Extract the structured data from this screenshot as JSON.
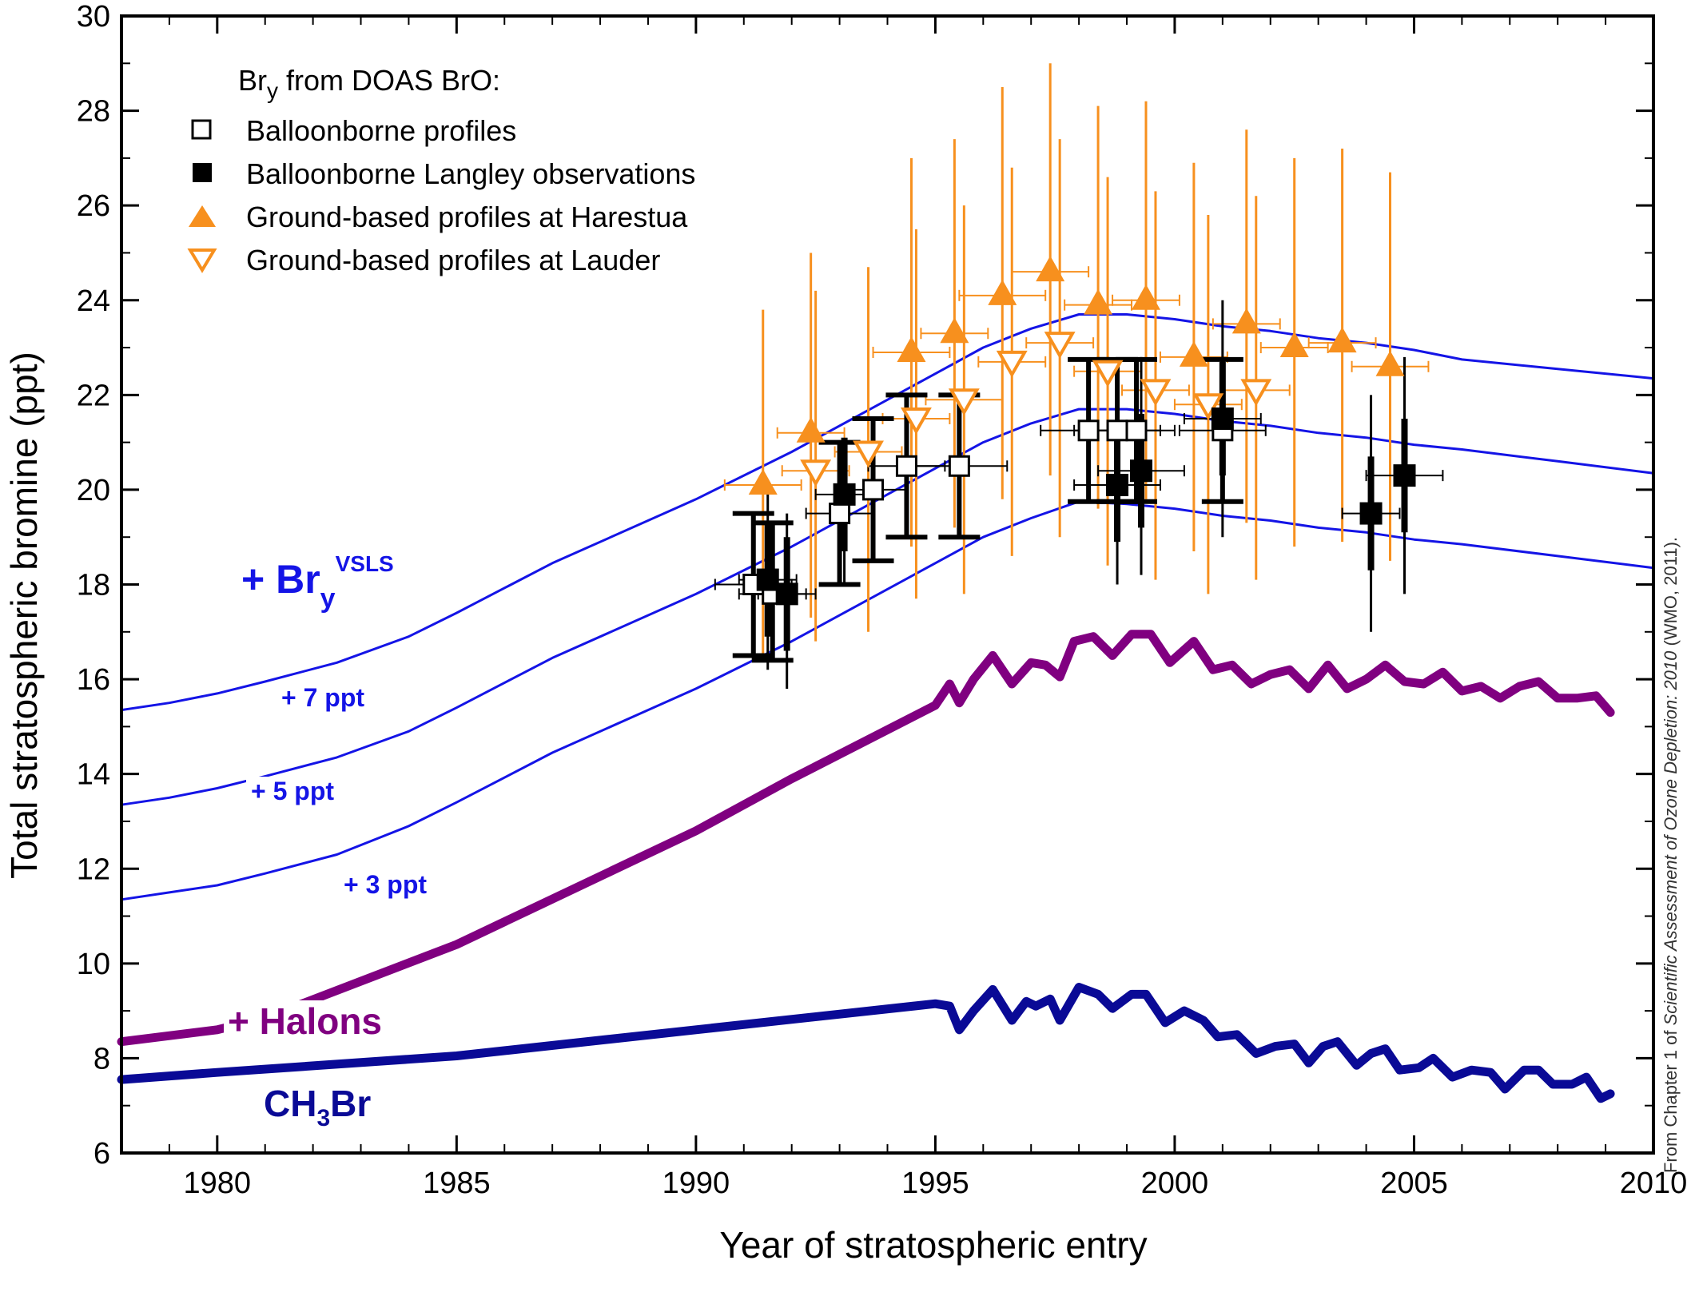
{
  "chart_data": {
    "type": "scatter",
    "xlabel": "Year of stratospheric entry",
    "ylabel": "Total stratospheric bromine (ppt)",
    "xlim": [
      1978,
      2010
    ],
    "ylim": [
      6,
      30
    ],
    "xticks": [
      1980,
      1985,
      1990,
      1995,
      2000,
      2005,
      2010
    ],
    "yticks": [
      6,
      8,
      10,
      12,
      14,
      16,
      18,
      20,
      22,
      24,
      26,
      28,
      30
    ],
    "legend": {
      "title_main": "Br",
      "title_sub": "y",
      "title_rest": " from DOAS BrO:",
      "placement": "top-left",
      "entries": [
        {
          "label": "Balloonborne profiles",
          "marker": "open-square"
        },
        {
          "label": "Balloonborne Langley observations",
          "marker": "filled-square"
        },
        {
          "label": "Ground-based profiles at Harestua",
          "marker": "filled-triangle-up"
        },
        {
          "label": "Ground-based profiles at Lauder",
          "marker": "open-triangle-down"
        }
      ]
    },
    "curve_labels": {
      "bry_main": "+ Br",
      "bry_sub": "y",
      "bry_sup": "VSLS",
      "plus7": "+ 7 ppt",
      "plus5": "+ 5 ppt",
      "plus3": "+ 3 ppt",
      "halons": "+ Halons",
      "ch3br_a": "CH",
      "ch3br_sub": "3",
      "ch3br_b": "Br"
    },
    "colors": {
      "vsls_lines": "#1414e6",
      "halons": "#800080",
      "ch3br": "#0a0a96",
      "orange": "#f7901e",
      "black": "#000000"
    },
    "series": {
      "ch3br": [
        [
          1978,
          7.55
        ],
        [
          1980,
          7.7
        ],
        [
          1985,
          8.05
        ],
        [
          1990,
          8.6
        ],
        [
          1995,
          9.15
        ],
        [
          1995.3,
          9.1
        ],
        [
          1995.5,
          8.6
        ],
        [
          1995.8,
          9.0
        ],
        [
          1996.2,
          9.45
        ],
        [
          1996.6,
          8.8
        ],
        [
          1996.9,
          9.2
        ],
        [
          1997.1,
          9.1
        ],
        [
          1997.4,
          9.25
        ],
        [
          1997.6,
          8.8
        ],
        [
          1998,
          9.5
        ],
        [
          1998.4,
          9.35
        ],
        [
          1998.7,
          9.05
        ],
        [
          1999.1,
          9.35
        ],
        [
          1999.4,
          9.35
        ],
        [
          1999.8,
          8.75
        ],
        [
          2000.2,
          9.0
        ],
        [
          2000.6,
          8.8
        ],
        [
          2000.9,
          8.45
        ],
        [
          2001.3,
          8.5
        ],
        [
          2001.7,
          8.1
        ],
        [
          2002.1,
          8.25
        ],
        [
          2002.5,
          8.3
        ],
        [
          2002.8,
          7.9
        ],
        [
          2003.1,
          8.25
        ],
        [
          2003.4,
          8.35
        ],
        [
          2003.8,
          7.85
        ],
        [
          2004.1,
          8.1
        ],
        [
          2004.4,
          8.2
        ],
        [
          2004.7,
          7.75
        ],
        [
          2005.1,
          7.8
        ],
        [
          2005.4,
          8.0
        ],
        [
          2005.8,
          7.6
        ],
        [
          2006.2,
          7.75
        ],
        [
          2006.6,
          7.7
        ],
        [
          2006.9,
          7.35
        ],
        [
          2007.3,
          7.75
        ],
        [
          2007.6,
          7.75
        ],
        [
          2007.9,
          7.45
        ],
        [
          2008.3,
          7.45
        ],
        [
          2008.6,
          7.6
        ],
        [
          2008.9,
          7.15
        ],
        [
          2009.1,
          7.25
        ]
      ],
      "halons": [
        [
          1978,
          8.35
        ],
        [
          1980,
          8.6
        ],
        [
          1981,
          8.85
        ],
        [
          1985,
          10.4
        ],
        [
          1990,
          12.8
        ],
        [
          1992,
          13.9
        ],
        [
          1995,
          15.45
        ],
        [
          1995.3,
          15.9
        ],
        [
          1995.5,
          15.5
        ],
        [
          1995.8,
          16.0
        ],
        [
          1996.2,
          16.5
        ],
        [
          1996.6,
          15.9
        ],
        [
          1997.0,
          16.35
        ],
        [
          1997.3,
          16.3
        ],
        [
          1997.6,
          16.05
        ],
        [
          1997.9,
          16.8
        ],
        [
          1998.3,
          16.9
        ],
        [
          1998.7,
          16.5
        ],
        [
          1999.1,
          16.95
        ],
        [
          1999.5,
          16.95
        ],
        [
          1999.9,
          16.35
        ],
        [
          2000.4,
          16.8
        ],
        [
          2000.8,
          16.2
        ],
        [
          2001.2,
          16.3
        ],
        [
          2001.6,
          15.9
        ],
        [
          2002.0,
          16.1
        ],
        [
          2002.4,
          16.2
        ],
        [
          2002.8,
          15.8
        ],
        [
          2003.2,
          16.3
        ],
        [
          2003.6,
          15.8
        ],
        [
          2004.0,
          16.0
        ],
        [
          2004.4,
          16.3
        ],
        [
          2004.8,
          15.95
        ],
        [
          2005.2,
          15.9
        ],
        [
          2005.6,
          16.15
        ],
        [
          2006.0,
          15.75
        ],
        [
          2006.4,
          15.85
        ],
        [
          2006.8,
          15.6
        ],
        [
          2007.2,
          15.85
        ],
        [
          2007.6,
          15.95
        ],
        [
          2008.0,
          15.6
        ],
        [
          2008.4,
          15.6
        ],
        [
          2008.8,
          15.65
        ],
        [
          2009.1,
          15.3
        ]
      ],
      "plus3": [
        [
          1978,
          11.35
        ],
        [
          1979,
          11.5
        ],
        [
          1980,
          11.65
        ],
        [
          1981,
          11.9
        ],
        [
          1982.5,
          12.3
        ],
        [
          1984,
          12.9
        ],
        [
          1985,
          13.4
        ],
        [
          1987,
          14.45
        ],
        [
          1990,
          15.8
        ],
        [
          1992,
          16.8
        ],
        [
          1995,
          18.45
        ],
        [
          1996,
          19.0
        ],
        [
          1997,
          19.4
        ],
        [
          1998,
          19.75
        ],
        [
          1999,
          19.7
        ],
        [
          2000,
          19.6
        ],
        [
          2001,
          19.45
        ],
        [
          2002,
          19.35
        ],
        [
          2003,
          19.2
        ],
        [
          2004,
          19.1
        ],
        [
          2005,
          18.95
        ],
        [
          2006,
          18.85
        ],
        [
          2008,
          18.6
        ],
        [
          2010,
          18.35
        ]
      ],
      "plus5": [
        [
          1978,
          13.35
        ],
        [
          1979,
          13.5
        ],
        [
          1980,
          13.7
        ],
        [
          1981,
          13.95
        ],
        [
          1982.5,
          14.35
        ],
        [
          1984,
          14.9
        ],
        [
          1985,
          15.4
        ],
        [
          1987,
          16.45
        ],
        [
          1990,
          17.8
        ],
        [
          1992,
          18.8
        ],
        [
          1995,
          20.45
        ],
        [
          1996,
          21.0
        ],
        [
          1997,
          21.4
        ],
        [
          1998,
          21.7
        ],
        [
          1999,
          21.7
        ],
        [
          2000,
          21.6
        ],
        [
          2001,
          21.45
        ],
        [
          2002,
          21.35
        ],
        [
          2003,
          21.2
        ],
        [
          2004,
          21.1
        ],
        [
          2005,
          20.95
        ],
        [
          2006,
          20.85
        ],
        [
          2008,
          20.6
        ],
        [
          2010,
          20.35
        ]
      ],
      "plus7": [
        [
          1978,
          15.35
        ],
        [
          1979,
          15.5
        ],
        [
          1980,
          15.7
        ],
        [
          1981,
          15.95
        ],
        [
          1982.5,
          16.35
        ],
        [
          1984,
          16.9
        ],
        [
          1985,
          17.4
        ],
        [
          1987,
          18.45
        ],
        [
          1990,
          19.8
        ],
        [
          1992,
          20.8
        ],
        [
          1995,
          22.45
        ],
        [
          1996,
          23.0
        ],
        [
          1997,
          23.4
        ],
        [
          1998,
          23.7
        ],
        [
          1999,
          23.7
        ],
        [
          2000,
          23.6
        ],
        [
          2001,
          23.45
        ],
        [
          2002,
          23.35
        ],
        [
          2003,
          23.2
        ],
        [
          2004,
          23.1
        ],
        [
          2005,
          22.95
        ],
        [
          2006,
          22.75
        ],
        [
          2008,
          22.55
        ],
        [
          2010,
          22.35
        ]
      ],
      "harestua": [
        {
          "x": 1991.4,
          "y": 20.1,
          "xerr": 0.8,
          "ylo": 16.4,
          "yhi": 23.8
        },
        {
          "x": 1992.4,
          "y": 21.2,
          "xerr": 0.7,
          "ylo": 17.3,
          "yhi": 25.0
        },
        {
          "x": 1994.5,
          "y": 22.9,
          "xerr": 0.8,
          "ylo": 18.8,
          "yhi": 27.0
        },
        {
          "x": 1995.4,
          "y": 23.3,
          "xerr": 0.7,
          "ylo": 19.2,
          "yhi": 27.4
        },
        {
          "x": 1996.4,
          "y": 24.1,
          "xerr": 0.9,
          "ylo": 19.8,
          "yhi": 28.5
        },
        {
          "x": 1997.4,
          "y": 24.6,
          "xerr": 0.8,
          "ylo": 20.3,
          "yhi": 29.0
        },
        {
          "x": 1998.4,
          "y": 23.9,
          "xerr": 0.7,
          "ylo": 19.6,
          "yhi": 28.1
        },
        {
          "x": 1999.4,
          "y": 24.0,
          "xerr": 0.7,
          "ylo": 19.8,
          "yhi": 28.2
        },
        {
          "x": 2000.4,
          "y": 22.8,
          "xerr": 0.7,
          "ylo": 18.7,
          "yhi": 26.9
        },
        {
          "x": 2001.5,
          "y": 23.5,
          "xerr": 0.7,
          "ylo": 19.3,
          "yhi": 27.6
        },
        {
          "x": 2002.5,
          "y": 23.0,
          "xerr": 0.7,
          "ylo": 18.8,
          "yhi": 27.0
        },
        {
          "x": 2003.5,
          "y": 23.1,
          "xerr": 0.7,
          "ylo": 18.9,
          "yhi": 27.2
        },
        {
          "x": 2004.5,
          "y": 22.6,
          "xerr": 0.8,
          "ylo": 18.5,
          "yhi": 26.7
        }
      ],
      "lauder": [
        {
          "x": 1992.5,
          "y": 20.4,
          "xerr": 0.7,
          "ylo": 16.8,
          "yhi": 24.2
        },
        {
          "x": 1993.6,
          "y": 20.8,
          "xerr": 0.7,
          "ylo": 17.0,
          "yhi": 24.7
        },
        {
          "x": 1994.6,
          "y": 21.5,
          "xerr": 0.7,
          "ylo": 17.7,
          "yhi": 25.5
        },
        {
          "x": 1995.6,
          "y": 21.9,
          "xerr": 0.8,
          "ylo": 17.8,
          "yhi": 26.0
        },
        {
          "x": 1996.6,
          "y": 22.7,
          "xerr": 0.7,
          "ylo": 18.6,
          "yhi": 26.8
        },
        {
          "x": 1997.6,
          "y": 23.1,
          "xerr": 0.7,
          "ylo": 19.0,
          "yhi": 27.4
        },
        {
          "x": 1998.6,
          "y": 22.5,
          "xerr": 0.7,
          "ylo": 18.4,
          "yhi": 26.6
        },
        {
          "x": 1999.6,
          "y": 22.1,
          "xerr": 0.7,
          "ylo": 18.1,
          "yhi": 26.3
        },
        {
          "x": 2000.7,
          "y": 21.8,
          "xerr": 0.7,
          "ylo": 17.8,
          "yhi": 25.8
        },
        {
          "x": 2001.7,
          "y": 22.1,
          "xerr": 0.7,
          "ylo": 18.1,
          "yhi": 26.2
        }
      ],
      "balloon_profiles": [
        {
          "x": 1991.2,
          "y": 18.0,
          "xerr": 0.8,
          "ylo": 16.5,
          "yhi": 19.5
        },
        {
          "x": 1991.6,
          "y": 17.8,
          "xerr": 0.7,
          "ylo": 16.4,
          "yhi": 19.3
        },
        {
          "x": 1993.0,
          "y": 19.5,
          "xerr": 0.7,
          "ylo": 18.0,
          "yhi": 21.0
        },
        {
          "x": 1993.7,
          "y": 20.0,
          "xerr": 0.7,
          "ylo": 18.5,
          "yhi": 21.5
        },
        {
          "x": 1994.4,
          "y": 20.5,
          "xerr": 0.8,
          "ylo": 19.0,
          "yhi": 22.0
        },
        {
          "x": 1995.5,
          "y": 20.5,
          "xerr": 1.0,
          "ylo": 19.0,
          "yhi": 22.0
        },
        {
          "x": 1998.2,
          "y": 21.25,
          "xerr": 1.0,
          "ylo": 19.75,
          "yhi": 22.75
        },
        {
          "x": 1998.8,
          "y": 21.25,
          "xerr": 0.9,
          "ylo": 19.75,
          "yhi": 22.75
        },
        {
          "x": 1999.2,
          "y": 21.25,
          "xerr": 0.8,
          "ylo": 19.75,
          "yhi": 22.75
        },
        {
          "x": 2001.0,
          "y": 21.25,
          "xerr": 0.9,
          "ylo": 19.75,
          "yhi": 22.75
        }
      ],
      "balloon_langley": [
        {
          "x": 1991.5,
          "y": 18.1,
          "xerr": 0.6,
          "ylo": 16.2,
          "yhi": 20.0
        },
        {
          "x": 1991.9,
          "y": 17.8,
          "xerr": 0.6,
          "ylo": 15.8,
          "yhi": 19.5
        },
        {
          "x": 1993.1,
          "y": 19.9,
          "xerr": 0.6,
          "ylo": 18.0,
          "yhi": 21.0
        },
        {
          "x": 1998.8,
          "y": 20.1,
          "xerr": 0.9,
          "ylo": 18.0,
          "yhi": 22.6
        },
        {
          "x": 1999.3,
          "y": 20.4,
          "xerr": 0.9,
          "ylo": 18.2,
          "yhi": 22.8
        },
        {
          "x": 2001.0,
          "y": 21.5,
          "xerr": 0.8,
          "ylo": 19.0,
          "yhi": 24.0
        },
        {
          "x": 2004.1,
          "y": 19.5,
          "xerr": 0.6,
          "ylo": 17.0,
          "yhi": 22.0
        },
        {
          "x": 2004.8,
          "y": 20.3,
          "xerr": 0.8,
          "ylo": 17.8,
          "yhi": 22.8
        }
      ]
    },
    "credit": {
      "prefix": "From Chapter 1 of ",
      "italic": "Scientific Assessment of Ozone Depletion: 2010",
      "suffix": " (WMO, 2011)."
    }
  }
}
